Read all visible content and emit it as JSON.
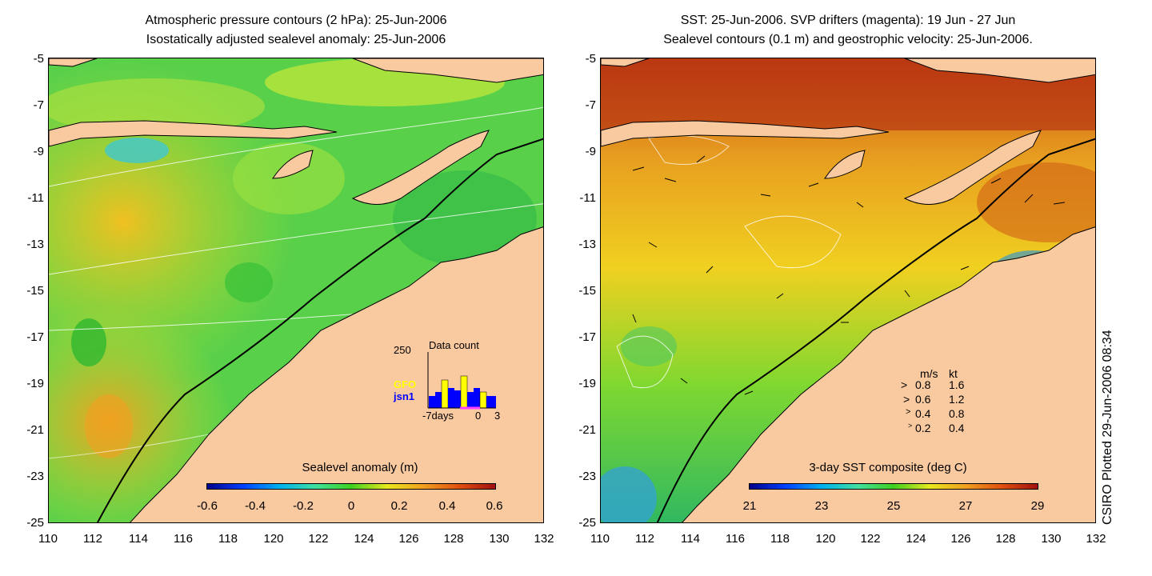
{
  "left_panel": {
    "title_line1": "Atmospheric pressure contours (2 hPa): 25-Jun-2006",
    "title_line2": "Isostatically adjusted sealevel anomaly: 25-Jun-2006",
    "colorbar_label": "Sealevel anomaly (m)",
    "colorbar_ticks": [
      "-0.6",
      "-0.4",
      "-0.2",
      "0",
      "0.2",
      "0.4",
      "0.6"
    ],
    "inset": {
      "title": "Data count",
      "ymax_label": "250",
      "series": [
        {
          "name": "GFO",
          "color": "#ffff00"
        },
        {
          "name": "jsn1",
          "color": "#0000ff"
        }
      ],
      "x_ticks": [
        "-7days",
        "0",
        "3"
      ]
    }
  },
  "right_panel": {
    "title_line1": "SST: 25-Jun-2006. SVP drifters (magenta): 19 Jun - 27 Jun",
    "title_line2": "Sealevel contours (0.1 m) and geostrophic velocity: 25-Jun-2006.",
    "colorbar_label": "3-day SST composite (deg C)",
    "colorbar_ticks": [
      "21",
      "23",
      "25",
      "27",
      "29"
    ],
    "velocity_legend": {
      "header_ms": "m/s",
      "header_kt": "kt",
      "rows": [
        {
          "ms": "0.8",
          "kt": "1.6"
        },
        {
          "ms": "0.6",
          "kt": "1.2"
        },
        {
          "ms": "0.4",
          "kt": "0.8"
        },
        {
          "ms": "0.2",
          "kt": "0.4"
        }
      ]
    }
  },
  "axes": {
    "y_ticks": [
      "-5",
      "-7",
      "-9",
      "-11",
      "-13",
      "-15",
      "-17",
      "-19",
      "-21",
      "-23",
      "-25"
    ],
    "x_ticks": [
      "110",
      "112",
      "114",
      "116",
      "118",
      "120",
      "122",
      "124",
      "126",
      "128",
      "130",
      "132"
    ]
  },
  "credit": "CSIRO Plotted 29-Jun-2006 08:34",
  "colors": {
    "land": "#f9c9a0",
    "ocean_mid": "#40c840"
  }
}
